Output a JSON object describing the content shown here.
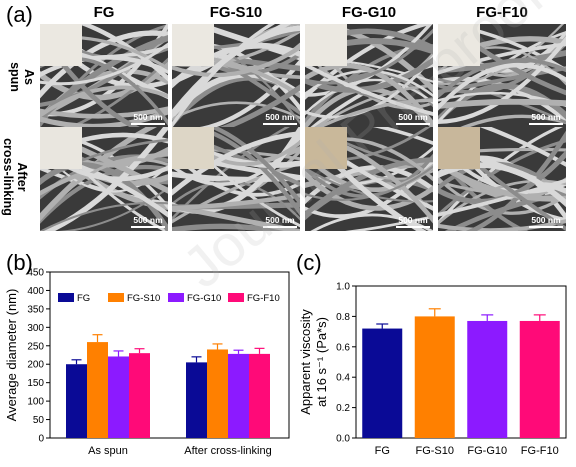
{
  "panel_a": {
    "label": "(a)",
    "columns": [
      "FG",
      "FG-S10",
      "FG-G10",
      "FG-F10"
    ],
    "rows": [
      "As spun",
      "After cross-linking"
    ],
    "row_lines": [
      [
        "As",
        "spun"
      ],
      [
        "After",
        "cross-linking"
      ]
    ],
    "scale_bar": "500 nm",
    "swatch_colors": [
      [
        "#ebe8e1",
        "#ebe8e1",
        "#ebe8e1",
        "#ebe8e1"
      ],
      [
        "#e9e6df",
        "#ddd6c6",
        "#c9b89a",
        "#c8b79b"
      ]
    ]
  },
  "watermark": "Journal Pre-proof",
  "chart_data": [
    {
      "id": "b",
      "panel_label": "(b)",
      "type": "bar",
      "categories": [
        "As spun",
        "After cross-linking"
      ],
      "series": [
        {
          "name": "FG",
          "color": "#0a0a96",
          "values": [
            200,
            205
          ],
          "errors": [
            12,
            15
          ]
        },
        {
          "name": "FG-S10",
          "color": "#ff8000",
          "values": [
            260,
            240
          ],
          "errors": [
            20,
            15
          ]
        },
        {
          "name": "FG-G10",
          "color": "#8c1aff",
          "values": [
            221,
            228
          ],
          "errors": [
            15,
            10
          ]
        },
        {
          "name": "FG-F10",
          "color": "#ff0a78",
          "values": [
            230,
            228
          ],
          "errors": [
            12,
            15
          ]
        }
      ],
      "xlabel": "",
      "ylabel": "Average diameter (nm)",
      "ylim": [
        0,
        450
      ],
      "yticks": [
        "0",
        "50",
        "100",
        "150",
        "200",
        "250",
        "300",
        "350",
        "400",
        "450"
      ],
      "legend_position": "top"
    },
    {
      "id": "c",
      "panel_label": "(c)",
      "type": "bar",
      "categories": [
        "FG",
        "FG-S10",
        "FG-G10",
        "FG-F10"
      ],
      "colors": [
        "#0a0a96",
        "#ff8000",
        "#8c1aff",
        "#ff0a78"
      ],
      "values": [
        0.72,
        0.8,
        0.77,
        0.77
      ],
      "errors": [
        0.03,
        0.05,
        0.04,
        0.04
      ],
      "xlabel": "",
      "ylabel_line1": "Apparent viscosity",
      "ylabel_line2": "at 16 s⁻¹ (Pa*s)",
      "ylim": [
        0.0,
        1.0
      ],
      "yticks": [
        "0.0",
        "0.2",
        "0.4",
        "0.6",
        "0.8",
        "1.0"
      ]
    }
  ]
}
